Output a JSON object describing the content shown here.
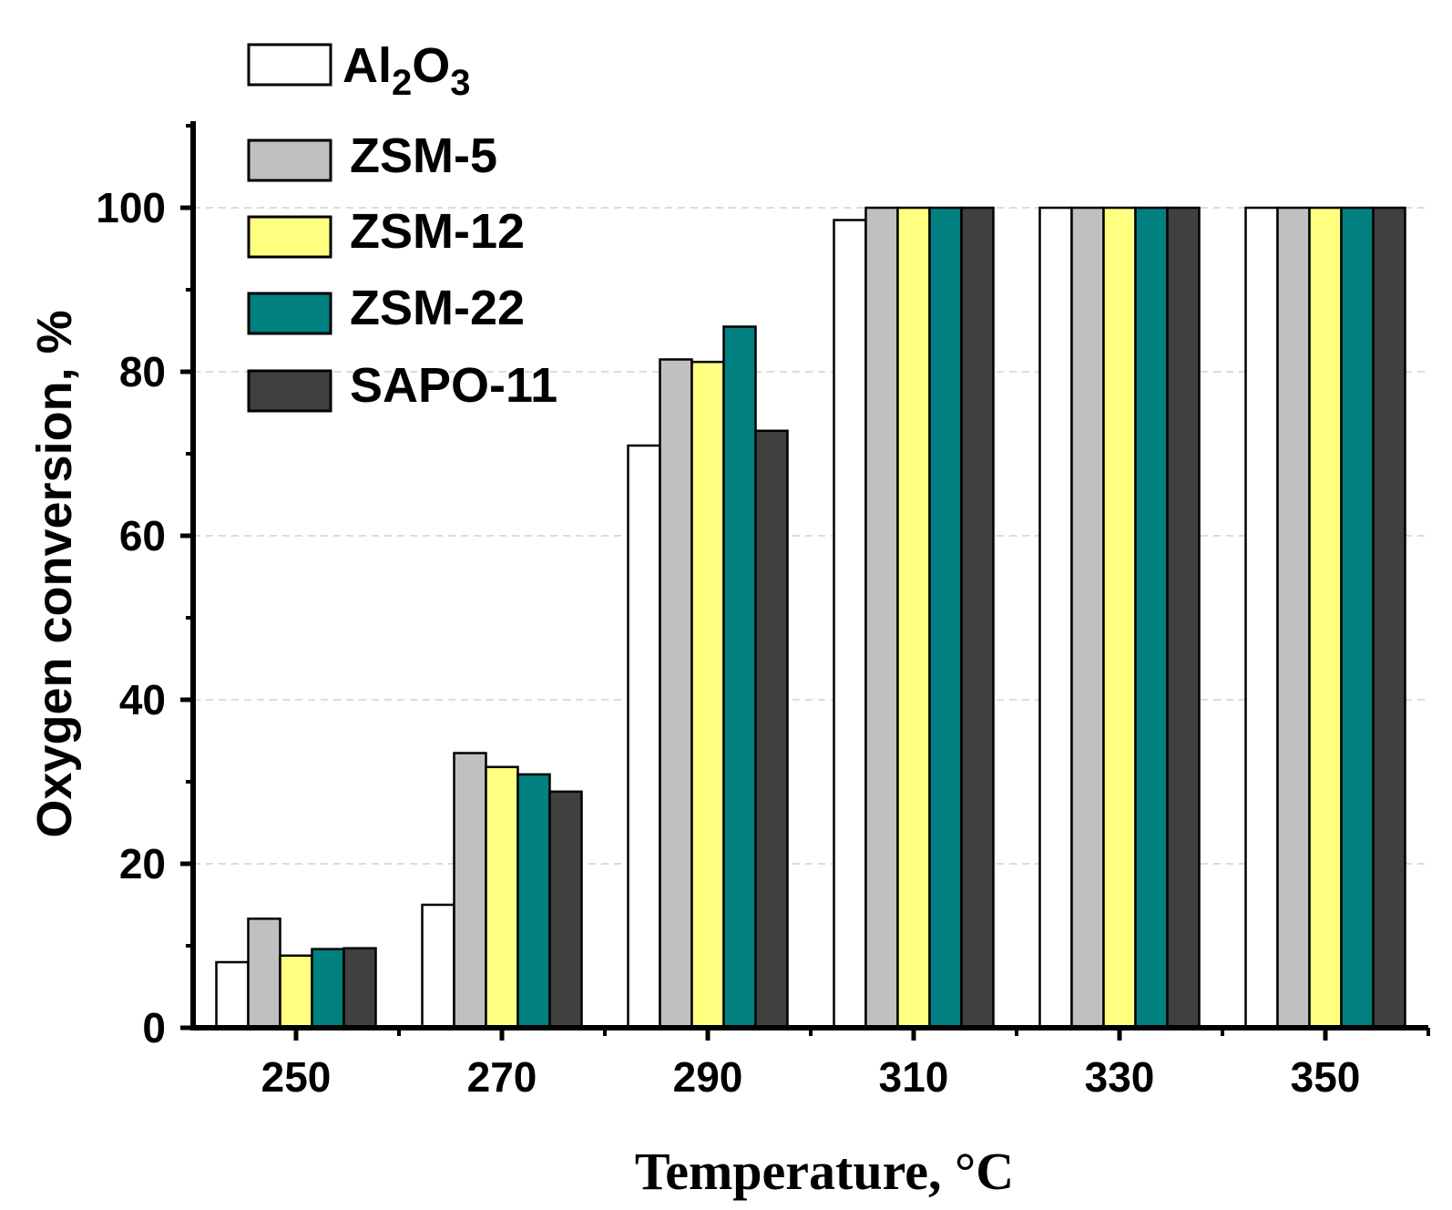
{
  "chart_data": {
    "type": "bar",
    "categories": [
      "250",
      "270",
      "290",
      "310",
      "330",
      "350"
    ],
    "series": [
      {
        "name": "Al2O3",
        "color": "#ffffff",
        "values": [
          8,
          15,
          71,
          98.5,
          100,
          100
        ]
      },
      {
        "name": "ZSM-5",
        "color": "#c0c0c0",
        "values": [
          13.3,
          33.5,
          81.5,
          100,
          100,
          100
        ]
      },
      {
        "name": "ZSM-12",
        "color": "#ffff80",
        "values": [
          8.8,
          31.8,
          81.2,
          100,
          100,
          100
        ]
      },
      {
        "name": "ZSM-22",
        "color": "#008080",
        "values": [
          9.6,
          30.9,
          85.5,
          100,
          100,
          100
        ]
      },
      {
        "name": "SAPO-11",
        "color": "#404040",
        "values": [
          9.7,
          28.8,
          72.8,
          100,
          100,
          100
        ]
      }
    ],
    "legend_main": [
      "Al",
      "O"
    ],
    "legend_sub": [
      "2",
      "3"
    ],
    "xlabel": "Temperature, °C",
    "ylabel": "Oxygen conversion, %",
    "ylim": [
      0,
      110
    ],
    "yticks": [
      "0",
      "20",
      "40",
      "60",
      "80",
      "100"
    ],
    "grid": "horizontal dashed",
    "legend_position": "top-left"
  }
}
